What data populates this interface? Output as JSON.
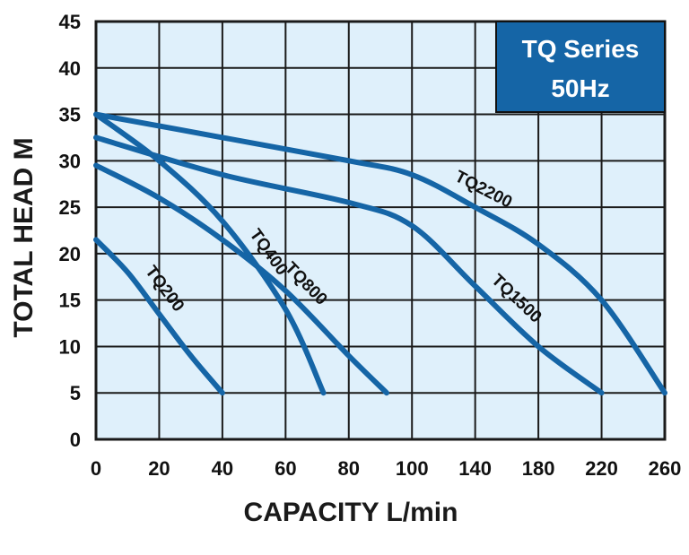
{
  "chart_data": {
    "type": "line",
    "xlabel": "CAPACITY L/min",
    "ylabel": "TOTAL HEAD M",
    "x_ticks": [
      "0",
      "20",
      "40",
      "60",
      "80",
      "100",
      "140",
      "180",
      "220",
      "260"
    ],
    "y_ticks": [
      "0",
      "5",
      "10",
      "15",
      "20",
      "25",
      "30",
      "35",
      "40",
      "45"
    ],
    "ylim": [
      0,
      45
    ],
    "grid": true,
    "legend_box": {
      "line1": "TQ Series",
      "line2": "50Hz",
      "placement": "top-right"
    },
    "colors": {
      "curve": "#1565a6",
      "plot_background": "#dff0fb",
      "legend_background": "#1565a6",
      "grid": "#1a1a1a"
    },
    "series": [
      {
        "name": "TQ200",
        "x": [
          0,
          10,
          20,
          30,
          40
        ],
        "y": [
          21.5,
          18,
          13.5,
          9,
          5
        ]
      },
      {
        "name": "TQ400",
        "x": [
          0,
          20,
          40,
          60,
          72
        ],
        "y": [
          35,
          30,
          23.5,
          14,
          5
        ]
      },
      {
        "name": "TQ800",
        "x": [
          0,
          20,
          40,
          60,
          80,
          92
        ],
        "y": [
          29.5,
          26,
          21.5,
          16,
          9,
          5
        ]
      },
      {
        "name": "TQ1500",
        "x": [
          0,
          40,
          80,
          100,
          140,
          180,
          220
        ],
        "y": [
          32.5,
          28.5,
          25.5,
          23,
          16.5,
          10,
          5
        ]
      },
      {
        "name": "TQ2200",
        "x": [
          0,
          40,
          80,
          100,
          140,
          180,
          220,
          260
        ],
        "y": [
          35,
          32.5,
          30,
          28.5,
          25,
          21,
          15,
          5
        ]
      }
    ]
  }
}
